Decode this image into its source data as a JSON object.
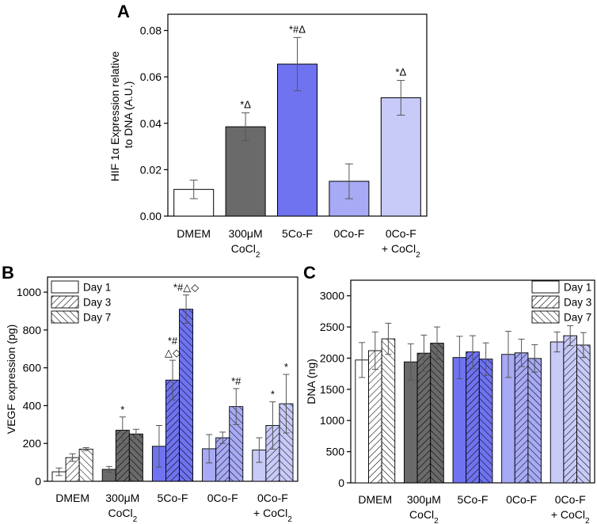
{
  "colors": {
    "dmem": "#ffffff",
    "cocl2": "#6a6a6a",
    "co5f": "#6f73f0",
    "co0f": "#a7aaf4",
    "co0fcocl2": "#c8caf8",
    "border": "#000000",
    "error": "#555555"
  },
  "chart_data": [
    {
      "panel": "A",
      "type": "bar",
      "title": "",
      "ylabel_line1": "HIF 1α Expression relative",
      "ylabel_line2": "to DNA (A.U.)",
      "xlabel": "",
      "ylim": [
        0,
        0.087
      ],
      "yticks": [
        "0.00",
        "0.02",
        "0.04",
        "0.06",
        "0.08"
      ],
      "ytick_values": [
        0,
        0.02,
        0.04,
        0.06,
        0.08
      ],
      "categories": [
        {
          "line1": "DMEM",
          "line2": "",
          "sub": ""
        },
        {
          "line1": "300μM",
          "line2": "CoCl",
          "sub": "2"
        },
        {
          "line1": "5Co-F",
          "line2": "",
          "sub": ""
        },
        {
          "line1": "0Co-F",
          "line2": "",
          "sub": ""
        },
        {
          "line1": "0Co-F",
          "line2": "+ CoCl",
          "sub": "2"
        }
      ],
      "values": [
        0.0115,
        0.0385,
        0.0655,
        0.015,
        0.051
      ],
      "errors": [
        0.004,
        0.006,
        0.0115,
        0.0075,
        0.0075
      ],
      "color_keys": [
        "dmem",
        "cocl2",
        "co5f",
        "co0f",
        "co0fcocl2"
      ],
      "annotations": [
        "",
        "*Δ",
        "*#Δ",
        "",
        "*Δ"
      ]
    },
    {
      "panel": "B",
      "type": "bar",
      "ylabel": "VEGF expression (pg)",
      "xlabel": "",
      "ylim": [
        0,
        1080
      ],
      "yticks": [
        "0",
        "200",
        "400",
        "600",
        "800",
        "1000"
      ],
      "ytick_values": [
        0,
        200,
        400,
        600,
        800,
        1000
      ],
      "categories": [
        {
          "line1": "DMEM",
          "line2": "",
          "sub": ""
        },
        {
          "line1": "300μM",
          "line2": "CoCl",
          "sub": "2"
        },
        {
          "line1": "5Co-F",
          "line2": "",
          "sub": ""
        },
        {
          "line1": "0Co-F",
          "line2": "",
          "sub": ""
        },
        {
          "line1": "0Co-F",
          "line2": "+ CoCl",
          "sub": "2"
        }
      ],
      "legend": [
        "Day 1",
        "Day 3",
        "Day 7"
      ],
      "legend_position": "top-left",
      "series": [
        {
          "name": "Day 1",
          "values": [
            50,
            63,
            185,
            172,
            165
          ],
          "errors": [
            20,
            15,
            110,
            75,
            65
          ]
        },
        {
          "name": "Day 3",
          "values": [
            125,
            270,
            535,
            230,
            295
          ],
          "errors": [
            20,
            70,
            105,
            30,
            125
          ]
        },
        {
          "name": "Day 7",
          "values": [
            170,
            250,
            910,
            395,
            410
          ],
          "errors": [
            8,
            25,
            75,
            95,
            155
          ]
        }
      ],
      "color_keys": [
        "dmem",
        "cocl2",
        "co5f",
        "co0f",
        "co0fcocl2"
      ],
      "annotations": [
        {
          "group": 1,
          "series": 1,
          "line1": "*",
          "line2": ""
        },
        {
          "group": 2,
          "series": 1,
          "line1": "*#",
          "line2": "△◇"
        },
        {
          "group": 2,
          "series": 2,
          "line1": "*#△◇",
          "line2": ""
        },
        {
          "group": 3,
          "series": 2,
          "line1": "*#",
          "line2": ""
        },
        {
          "group": 4,
          "series": 1,
          "line1": "*",
          "line2": ""
        },
        {
          "group": 4,
          "series": 2,
          "line1": "*",
          "line2": ""
        }
      ]
    },
    {
      "panel": "C",
      "type": "bar",
      "ylabel": "DNA (ng)",
      "xlabel": "",
      "ylim": [
        0,
        3250
      ],
      "yticks": [
        "0",
        "500",
        "1000",
        "1500",
        "2000",
        "2500",
        "3000"
      ],
      "ytick_values": [
        0,
        500,
        1000,
        1500,
        2000,
        2500,
        3000
      ],
      "categories": [
        {
          "line1": "DMEM",
          "line2": "",
          "sub": ""
        },
        {
          "line1": "300μM",
          "line2": "CoCl",
          "sub": "2"
        },
        {
          "line1": "5Co-F",
          "line2": "",
          "sub": ""
        },
        {
          "line1": "0Co-F",
          "line2": "",
          "sub": ""
        },
        {
          "line1": "0Co-F",
          "line2": "+ CoCl",
          "sub": "2"
        }
      ],
      "legend": [
        "Day 1",
        "Day 3",
        "Day 7"
      ],
      "legend_position": "top-right",
      "series": [
        {
          "name": "Day 1",
          "values": [
            1970,
            1940,
            2010,
            2060,
            2260
          ],
          "errors": [
            280,
            290,
            340,
            370,
            160
          ]
        },
        {
          "name": "Day 3",
          "values": [
            2120,
            2080,
            2100,
            2085,
            2360
          ],
          "errors": [
            300,
            290,
            260,
            220,
            160
          ]
        },
        {
          "name": "Day 7",
          "values": [
            2310,
            2240,
            1985,
            1995,
            2210
          ],
          "errors": [
            250,
            260,
            260,
            220,
            200
          ]
        }
      ],
      "color_keys": [
        "dmem",
        "cocl2",
        "co5f",
        "co0f",
        "co0fcocl2"
      ],
      "annotations": []
    }
  ]
}
